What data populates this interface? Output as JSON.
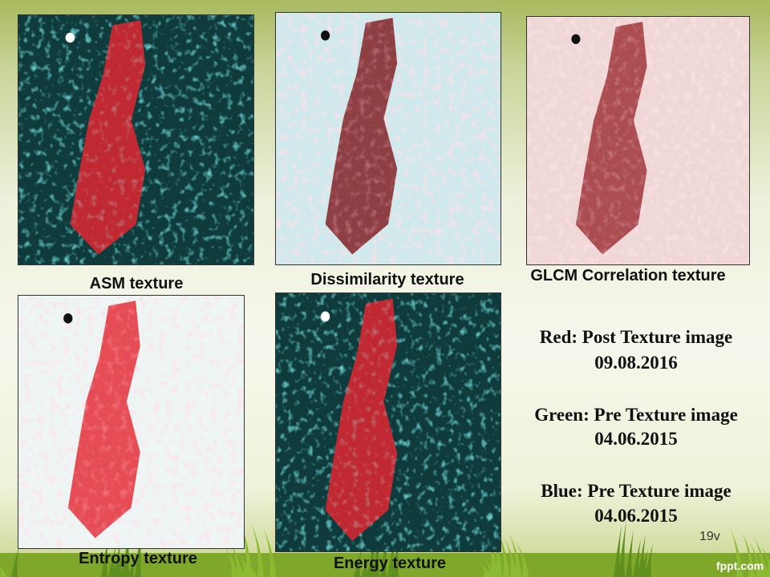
{
  "panels": [
    {
      "caption": "ASM texture"
    },
    {
      "caption": "Dissimilarity texture"
    },
    {
      "caption": "GLCM Correlation texture"
    },
    {
      "caption": "Entropy  texture"
    },
    {
      "caption": "Energy texture"
    }
  ],
  "legend": [
    "Red: Post Texture image",
    "09.08.2016",
    "Green: Pre Texture image",
    "04.06.2015",
    "Blue: Pre Texture image",
    "04.06.2015"
  ],
  "slide_number": "19v",
  "footer": "fppt.com"
}
